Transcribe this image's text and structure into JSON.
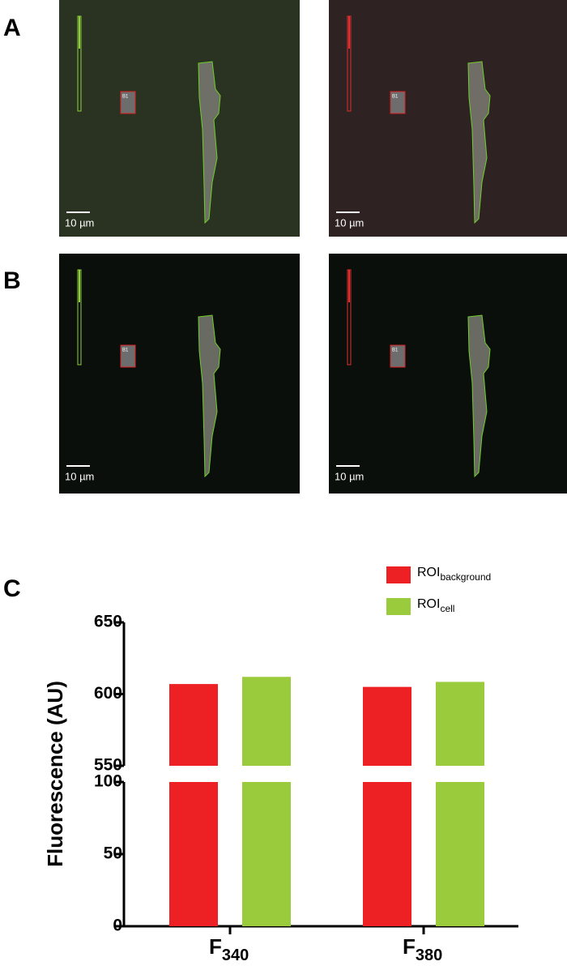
{
  "panels": [
    {
      "label": "A",
      "scale_bar": "10 µm",
      "roi_label": "B1"
    },
    {
      "label": "B",
      "scale_bar": "10 µm",
      "roi_label": "B1"
    },
    {
      "label": "C"
    }
  ],
  "chart_data": {
    "type": "bar",
    "y_label": "Fluorescence (AU)",
    "categories": [
      {
        "label": "F",
        "sub": "340"
      },
      {
        "label": "F",
        "sub": "380"
      }
    ],
    "series": [
      {
        "name": "ROI",
        "name_sub": "background",
        "color": "#ed2024",
        "values": [
          607,
          605
        ]
      },
      {
        "name": "ROI",
        "name_sub": "cell",
        "color": "#9acb3c",
        "values": [
          612,
          608.5
        ]
      }
    ],
    "y_segments": [
      {
        "ylim": [
          0,
          100
        ],
        "yticks": [
          0,
          50,
          100
        ]
      },
      {
        "ylim": [
          550,
          650
        ],
        "yticks": [
          550,
          600,
          650
        ]
      }
    ]
  }
}
